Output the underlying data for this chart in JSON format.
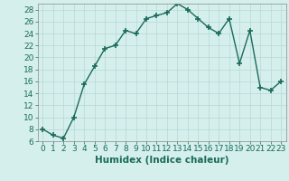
{
  "x": [
    0,
    1,
    2,
    3,
    4,
    5,
    6,
    7,
    8,
    9,
    10,
    11,
    12,
    13,
    14,
    15,
    16,
    17,
    18,
    19,
    20,
    21,
    22,
    23
  ],
  "y": [
    8,
    7,
    6.5,
    10,
    15.5,
    18.5,
    21.5,
    22,
    24.5,
    24,
    26.5,
    27,
    27.5,
    29,
    28,
    26.5,
    25,
    24,
    26.5,
    19,
    24.5,
    15,
    14.5,
    16
  ],
  "line_color": "#1a6b5a",
  "marker": "+",
  "marker_size": 4,
  "bg_color": "#d5efed",
  "grid_color_minor": "#c8e8e5",
  "grid_color_major": "#b0d4d0",
  "xlabel": "Humidex (Indice chaleur)",
  "xlim": [
    -0.5,
    23.5
  ],
  "ylim": [
    6,
    29
  ],
  "yticks": [
    6,
    8,
    10,
    12,
    14,
    16,
    18,
    20,
    22,
    24,
    26,
    28
  ],
  "xtick_labels": [
    "0",
    "1",
    "2",
    "3",
    "4",
    "5",
    "6",
    "7",
    "8",
    "9",
    "10",
    "11",
    "12",
    "13",
    "14",
    "15",
    "16",
    "17",
    "18",
    "19",
    "20",
    "21",
    "22",
    "23"
  ],
  "label_fontsize": 7.5,
  "tick_fontsize": 6.5,
  "line_width": 1.0,
  "marker_color": "#1a6b5a"
}
